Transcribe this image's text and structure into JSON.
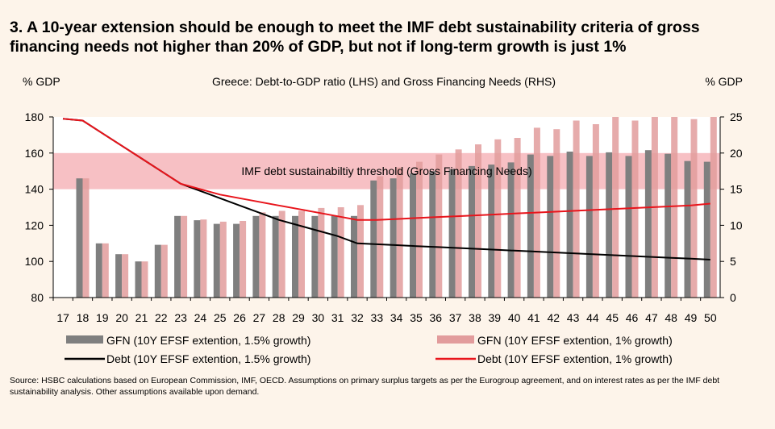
{
  "title": "3. A 10-year extension should be enough to meet the IMF debt sustainability criteria of gross financing needs not higher than 20% of GDP, but not if long-term growth is just 1%",
  "source": "Source: HSBC calculations based on European Commission, IMF, OECD. Assumptions on primary surplus targets as per the Eurogroup agreement, and on interest rates as per the IMF debt sustainability analysis. Other assumptions available upon demand.",
  "chart_data": {
    "type": "bar",
    "title": "Greece: Debt-to-GDP ratio (LHS) and Gross Financing Needs (RHS)",
    "ylabel": "% GDP",
    "y2label": "% GDP",
    "ylim": [
      80,
      180
    ],
    "y2lim": [
      0,
      25
    ],
    "yticks": [
      80,
      100,
      120,
      140,
      160,
      180
    ],
    "y2ticks": [
      0,
      5,
      10,
      15,
      20,
      25
    ],
    "grid": false,
    "legend_position": "bottom",
    "categories": [
      "17",
      "18",
      "19",
      "20",
      "21",
      "22",
      "23",
      "24",
      "25",
      "26",
      "27",
      "28",
      "29",
      "30",
      "31",
      "32",
      "33",
      "34",
      "35",
      "36",
      "37",
      "38",
      "39",
      "40",
      "41",
      "42",
      "43",
      "44",
      "45",
      "46",
      "47",
      "48",
      "49",
      "50"
    ],
    "threshold": {
      "label": "IMF debt sustainabiltiy threshold (Gross Financing Needs)",
      "y2_range": [
        15,
        20
      ],
      "color": "#f29a9f"
    },
    "series": [
      {
        "name": "GFN (10Y EFSF extention, 1.5% growth)",
        "kind": "bar",
        "axis": "right",
        "color": "#7f7f7f",
        "values": [
          null,
          16.5,
          7.5,
          6.0,
          5.0,
          7.3,
          11.3,
          10.7,
          10.2,
          10.2,
          11.3,
          11.3,
          11.3,
          11.3,
          11.3,
          11.3,
          16.2,
          16.5,
          17.2,
          17.5,
          17.8,
          18.2,
          18.4,
          18.7,
          19.8,
          19.6,
          20.2,
          19.6,
          20.1,
          19.6,
          20.4,
          19.9,
          18.9,
          18.8
        ]
      },
      {
        "name": "GFN (10Y EFSF extention, 1% growth)",
        "kind": "bar",
        "axis": "right",
        "color": "#e29c9c",
        "values": [
          null,
          16.5,
          7.5,
          6.0,
          5.0,
          7.3,
          11.3,
          10.8,
          10.5,
          10.6,
          11.8,
          12.0,
          12.0,
          12.4,
          12.5,
          12.8,
          16.8,
          18.0,
          18.8,
          19.8,
          20.5,
          21.2,
          21.9,
          22.1,
          23.5,
          23.3,
          24.5,
          24.0,
          25.0,
          24.5,
          25.0,
          25.0,
          24.7,
          25.0
        ]
      },
      {
        "name": "Debt (10Y EFSF extention, 1.5% growth)",
        "kind": "line",
        "axis": "left",
        "color": "#000000",
        "values": [
          179,
          178,
          171,
          164,
          157,
          150,
          143,
          139,
          135,
          131,
          127,
          123,
          120,
          117,
          114,
          110,
          109.5,
          109,
          108.5,
          108,
          107.5,
          107,
          106.5,
          106,
          105.5,
          105,
          104.5,
          104,
          103.5,
          103,
          102.5,
          102,
          101.5,
          101
        ]
      },
      {
        "name": "Debt (10Y EFSF extention, 1% growth)",
        "kind": "line",
        "axis": "left",
        "color": "#e8141b",
        "values": [
          179,
          178,
          171,
          164,
          157,
          150,
          143,
          140,
          137,
          135,
          133,
          131,
          129,
          127,
          125,
          123,
          123,
          123.5,
          124,
          124.5,
          125,
          125.5,
          126,
          126.5,
          127,
          127.5,
          128,
          128.5,
          129,
          129.5,
          130,
          130.5,
          131,
          132
        ]
      }
    ]
  }
}
